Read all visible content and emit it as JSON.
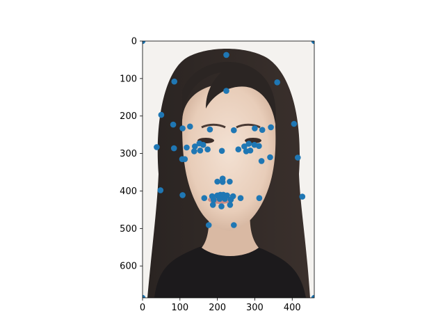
{
  "chart_data": {
    "type": "scatter",
    "title": "",
    "xlabel": "",
    "ylabel": "",
    "background": "photo of a face (long dark hair, black top, light background)",
    "xlim": [
      0,
      459
    ],
    "ylim": [
      685,
      0
    ],
    "y_axis_inverted": true,
    "grid": false,
    "legend": "none",
    "marker_color": "#1f77b4",
    "x_ticks": [
      0,
      100,
      200,
      300,
      400
    ],
    "y_ticks": [
      0,
      100,
      200,
      300,
      400,
      500,
      600
    ],
    "points": [
      [
        0,
        0
      ],
      [
        459,
        0
      ],
      [
        0,
        685
      ],
      [
        459,
        685
      ],
      [
        224,
        37
      ],
      [
        224,
        133
      ],
      [
        85,
        108
      ],
      [
        360,
        110
      ],
      [
        50,
        197
      ],
      [
        405,
        221
      ],
      [
        38,
        283
      ],
      [
        84,
        286
      ],
      [
        106,
        315
      ],
      [
        48,
        398
      ],
      [
        107,
        411
      ],
      [
        415,
        311
      ],
      [
        341,
        310
      ],
      [
        427,
        415
      ],
      [
        312,
        419
      ],
      [
        82,
        223
      ],
      [
        107,
        233
      ],
      [
        127,
        228
      ],
      [
        180,
        236
      ],
      [
        244,
        238
      ],
      [
        300,
        233
      ],
      [
        320,
        237
      ],
      [
        343,
        230
      ],
      [
        118,
        284
      ],
      [
        140,
        281
      ],
      [
        152,
        273
      ],
      [
        162,
        277
      ],
      [
        174,
        289
      ],
      [
        138,
        294
      ],
      [
        154,
        292
      ],
      [
        212,
        293
      ],
      [
        256,
        289
      ],
      [
        272,
        281
      ],
      [
        284,
        274
      ],
      [
        299,
        277
      ],
      [
        311,
        280
      ],
      [
        277,
        294
      ],
      [
        288,
        292
      ],
      [
        113,
        315
      ],
      [
        318,
        320
      ],
      [
        214,
        367
      ],
      [
        200,
        375
      ],
      [
        214,
        376
      ],
      [
        233,
        375
      ],
      [
        165,
        419
      ],
      [
        186,
        414
      ],
      [
        200,
        412
      ],
      [
        208,
        410
      ],
      [
        216,
        410
      ],
      [
        226,
        412
      ],
      [
        242,
        414
      ],
      [
        262,
        419
      ],
      [
        190,
        424
      ],
      [
        206,
        421
      ],
      [
        220,
        421
      ],
      [
        236,
        423
      ],
      [
        188,
        437
      ],
      [
        211,
        441
      ],
      [
        234,
        437
      ],
      [
        177,
        491
      ],
      [
        244,
        491
      ]
    ]
  }
}
